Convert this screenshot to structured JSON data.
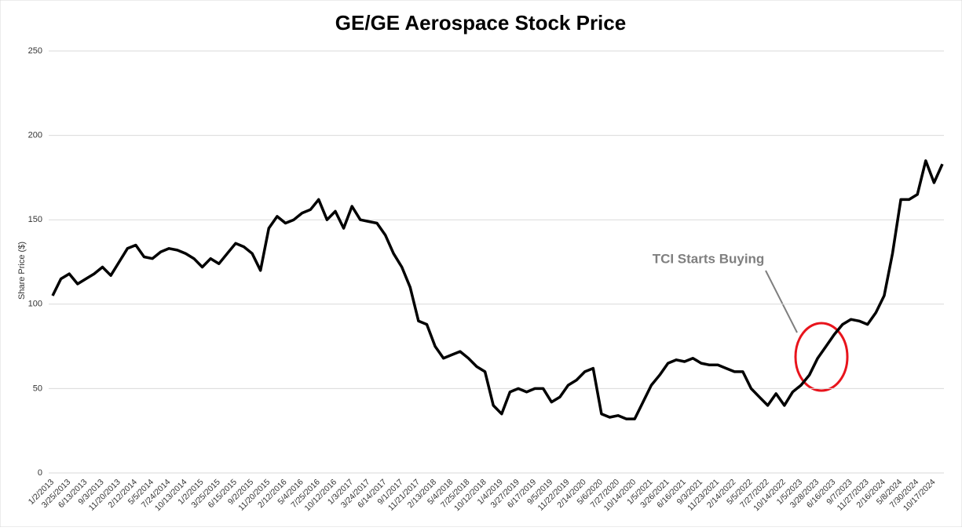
{
  "chart_data": {
    "type": "line",
    "title": "GE/GE Aerospace Stock Price",
    "ylabel": "Share Price ($)",
    "annotation": "TCI Starts Buying",
    "categories": [
      "1/2/2013",
      null,
      "3/25/2013",
      null,
      "6/13/2013",
      null,
      "9/3/2013",
      null,
      "11/20/2013",
      null,
      "2/12/2014",
      null,
      "5/5/2014",
      null,
      "7/24/2014",
      null,
      "10/13/2014",
      null,
      "1/2/2015",
      null,
      "3/25/2015",
      null,
      "6/15/2015",
      null,
      "9/2/2015",
      null,
      "11/20/2015",
      null,
      "2/12/2016",
      null,
      "5/4/2016",
      null,
      "7/25/2016",
      null,
      "10/12/2016",
      null,
      "1/3/2017",
      null,
      "3/24/2017",
      null,
      "6/14/2017",
      null,
      "9/1/2017",
      null,
      "11/21/2017",
      null,
      "2/13/2018",
      null,
      "5/4/2018",
      null,
      "7/25/2018",
      null,
      "10/12/2018",
      null,
      "1/4/2019",
      null,
      "3/27/2019",
      null,
      "6/17/2019",
      null,
      "9/5/2019",
      null,
      "11/22/2019",
      null,
      "2/14/2020",
      null,
      "5/6/2020",
      null,
      "7/27/2020",
      null,
      "10/14/2020",
      null,
      "1/5/2021",
      null,
      "3/26/2021",
      null,
      "6/16/2021",
      null,
      "9/3/2021",
      null,
      "11/23/2021",
      null,
      "2/14/2022",
      null,
      "5/5/2022",
      null,
      "7/27/2022",
      null,
      "10/14/2022",
      null,
      "1/5/2023",
      null,
      "3/28/2023",
      null,
      "6/16/2023",
      null,
      "9/7/2023",
      null,
      "11/27/2023",
      null,
      "2/16/2024",
      null,
      "5/8/2024",
      null,
      "7/30/2024",
      null,
      "10/17/2024",
      null
    ],
    "series": [
      {
        "name": "GE",
        "color": "#000000",
        "values": [
          105,
          115,
          118,
          112,
          115,
          118,
          122,
          117,
          125,
          133,
          135,
          128,
          127,
          131,
          133,
          132,
          130,
          127,
          122,
          127,
          124,
          130,
          136,
          134,
          130,
          120,
          145,
          152,
          148,
          150,
          154,
          156,
          162,
          150,
          155,
          145,
          158,
          150,
          149,
          148,
          141,
          130,
          122,
          110,
          90,
          88,
          75,
          68,
          70,
          72,
          68,
          63,
          60,
          40,
          35,
          48,
          50,
          48,
          50,
          50,
          42,
          45,
          52,
          55,
          60,
          62,
          35,
          33,
          34,
          32,
          32,
          42,
          52,
          58,
          65,
          67,
          66,
          68,
          65,
          64,
          64,
          62,
          60,
          60,
          50,
          45,
          40,
          47,
          40,
          48,
          52,
          58,
          68,
          75,
          82,
          88,
          91,
          90,
          88,
          95,
          105,
          130,
          162,
          162,
          165,
          185,
          172,
          183
        ]
      }
    ],
    "ylim": [
      0,
      250
    ],
    "yticks": [
      0,
      50,
      100,
      150,
      200,
      250
    ],
    "grid": true
  }
}
